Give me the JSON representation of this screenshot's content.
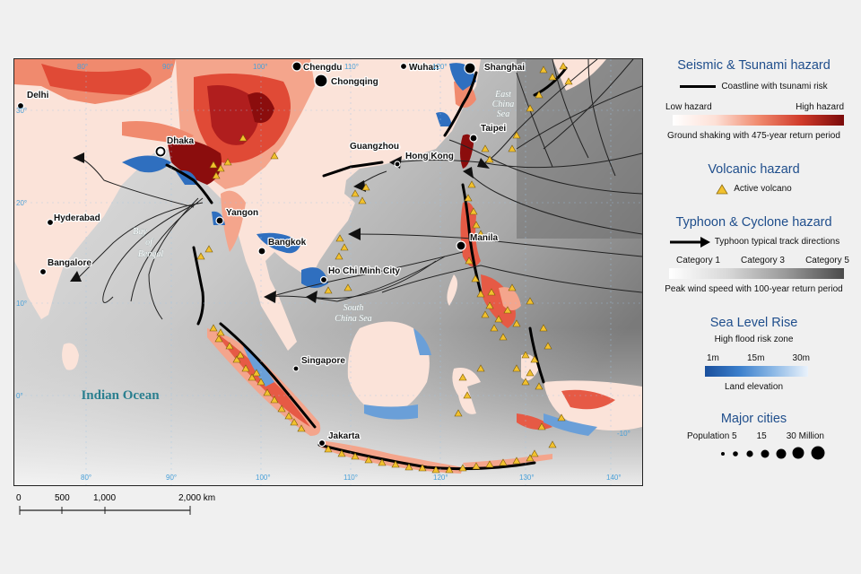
{
  "map": {
    "cities": [
      {
        "name": "Chengdu"
      },
      {
        "name": "Chongqing"
      },
      {
        "name": "Wuhan"
      },
      {
        "name": "Shanghai"
      },
      {
        "name": "Delhi"
      },
      {
        "name": "Dhaka"
      },
      {
        "name": "Taipei"
      },
      {
        "name": "Guangzhou"
      },
      {
        "name": "Hong Kong"
      },
      {
        "name": "Hyderabad"
      },
      {
        "name": "Yangon"
      },
      {
        "name": "Bangalore"
      },
      {
        "name": "Bangkok"
      },
      {
        "name": "Manila"
      },
      {
        "name": "Ho Chi Minh City"
      },
      {
        "name": "Singapore"
      },
      {
        "name": "Jakarta"
      }
    ],
    "seas": {
      "bay_of_bengal_1": "Bay",
      "bay_of_bengal_2": "of",
      "bay_of_bengal_3": "Bengal",
      "south_china_sea_1": "South",
      "south_china_sea_2": "China Sea",
      "east_china_sea_1": "East",
      "east_china_sea_2": "China",
      "east_china_sea_3": "Sea",
      "indian_ocean": "Indian Ocean"
    },
    "graticule_labels": [
      "80°",
      "90°",
      "100°",
      "110°",
      "120°",
      "130°",
      "140°",
      "110°",
      "120°",
      "100°",
      "90°",
      "80°",
      "30°",
      "20°",
      "10°",
      "0°",
      "-10°"
    ]
  },
  "scale_bar": {
    "ticks": [
      "0",
      "500",
      "1,000",
      "2,000 km"
    ]
  },
  "legend": {
    "seismic": {
      "title": "Seismic & Tsunami hazard",
      "coastline_label": "Coastline with tsunami risk",
      "low_label": "Low hazard",
      "high_label": "High hazard",
      "caption": "Ground shaking with 475-year return period"
    },
    "volcanic": {
      "title": "Volcanic hazard",
      "item_label": "Active volcano"
    },
    "typhoon": {
      "title": "Typhoon & Cyclone hazard",
      "track_label": "Typhoon typical track directions",
      "cat1": "Category 1",
      "cat3": "Category 3",
      "cat5": "Category 5",
      "caption": "Peak wind speed with 100-year return period"
    },
    "sea_level": {
      "title": "Sea Level Rise",
      "subtitle": "High flood risk zone",
      "v1": "1m",
      "v2": "15m",
      "v3": "30m",
      "caption": "Land elevation"
    },
    "cities": {
      "title": "Major cities",
      "population_label": "Population 5",
      "mid_label": "15",
      "max_label": "30 Million"
    }
  },
  "colors": {
    "legend_title": "#1f4e8c",
    "hazard_low": "#fde6de",
    "hazard_high": "#8b0d0d",
    "volcano": "#f2c12e",
    "flood_dark": "#1f5fb0",
    "flood_light": "#e6f0fa",
    "wind_low": "#f4f4f4",
    "wind_high": "#5a5a5a"
  }
}
